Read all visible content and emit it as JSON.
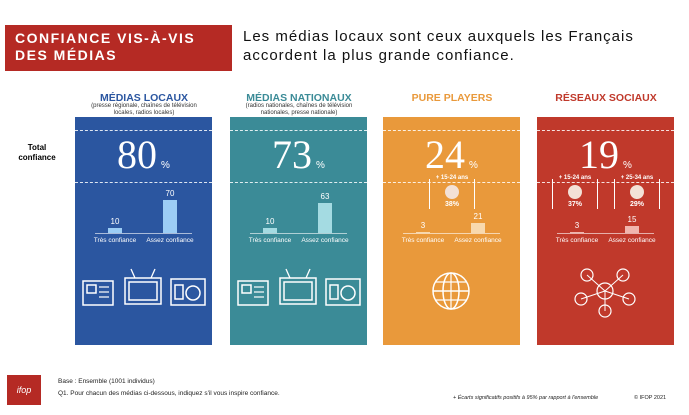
{
  "header": {
    "title": "CONFIANCE VIS-À-VIS DES MÉDIAS",
    "subtitle": "Les médias locaux sont ceux auxquels les Français accordent la plus grande confiance."
  },
  "row_label": "Total confiance",
  "percent_sign": "%",
  "bar_labels": [
    "Très confiance",
    "Assez confiance"
  ],
  "panels": [
    {
      "title": "MÉDIAS LOCAUX",
      "note": "(presse régionale, chaînes de télévision locales, radios locales)",
      "color": "#2b56a0",
      "bar_color": "#9ccdf5",
      "total": 80,
      "values": [
        10,
        70
      ],
      "icon": "press-tv-radio",
      "subgroups": []
    },
    {
      "title": "MÉDIAS NATIONAUX",
      "note": "(radios nationales, chaînes de télévision nationales, presse nationale)",
      "color": "#3b8b97",
      "bar_color": "#a4dbe2",
      "total": 73,
      "values": [
        10,
        63
      ],
      "icon": "press-tv-radio",
      "subgroups": []
    },
    {
      "title": "PURE PLAYERS",
      "note": "",
      "color": "#e9993b",
      "bar_color": "#f8d9ae",
      "total": 24,
      "values": [
        3,
        21
      ],
      "icon": "globe",
      "subgroups": [
        {
          "label": "+ 15-24 ans",
          "value": 38,
          "value_label": "38%"
        }
      ]
    },
    {
      "title": "RÉSEAUX SOCIAUX",
      "note": "",
      "color": "#c0392b",
      "bar_color": "#f1b5ad",
      "total": 19,
      "values": [
        3,
        15
      ],
      "icon": "network",
      "subgroups": [
        {
          "label": "+ 15-24 ans",
          "value": 37,
          "value_label": "37%"
        },
        {
          "label": "+ 25-34 ans",
          "value": 29,
          "value_label": "29%"
        }
      ]
    }
  ],
  "footer": {
    "logo": "ifop",
    "base": "Base : Ensemble (1001 individus)",
    "question": "Q1. Pour chacun des médias ci-dessous, indiquez s'il vous inspire confiance.",
    "legend": "+ Écarts significatifs positifs à 95% par rapport à l'ensemble",
    "copyright": "© IFOP 2021"
  }
}
